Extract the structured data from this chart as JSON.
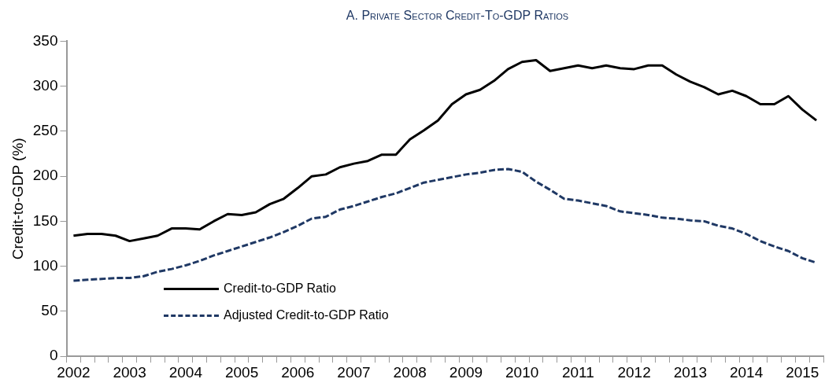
{
  "chart_data": {
    "type": "line",
    "title": "A. Private Sector Credit-To-GDP Ratios",
    "ylabel": "Credit-to-GDP (%)",
    "categories": [
      "2002",
      null,
      null,
      null,
      "2003",
      null,
      null,
      null,
      "2004",
      null,
      null,
      null,
      "2005",
      null,
      null,
      null,
      "2006",
      null,
      null,
      null,
      "2007",
      null,
      null,
      null,
      "2008",
      null,
      null,
      null,
      "2009",
      null,
      null,
      null,
      "2010",
      null,
      null,
      null,
      "2011",
      null,
      null,
      null,
      "2012",
      null,
      null,
      null,
      "2013",
      null,
      null,
      null,
      "2014",
      null,
      null,
      null,
      "2015",
      null
    ],
    "series": [
      {
        "name": "Credit-to-GDP Ratio",
        "color": "#000000",
        "line_style": "solid",
        "values": [
          134,
          136,
          136,
          134,
          128,
          131,
          134,
          142,
          142,
          141,
          150,
          158,
          157,
          160,
          169,
          175,
          187,
          200,
          202,
          210,
          214,
          217,
          224,
          224,
          241,
          251,
          262,
          280,
          291,
          296,
          306,
          319,
          327,
          329,
          317,
          320,
          323,
          320,
          323,
          320,
          319,
          323,
          323,
          313,
          305,
          299,
          291,
          295,
          289,
          280,
          280,
          289,
          274,
          262
        ]
      },
      {
        "name": "Adjusted Credit-to-GDP Ratio",
        "color": "#1f3864",
        "line_style": "dashed",
        "values": [
          84,
          85,
          86,
          87,
          87,
          89,
          94,
          97,
          101,
          106,
          112,
          117,
          122,
          127,
          132,
          138,
          145,
          153,
          155,
          163,
          167,
          172,
          177,
          181,
          187,
          193,
          196,
          199,
          202,
          204,
          207,
          208,
          205,
          194,
          185,
          175,
          173,
          170,
          167,
          161,
          159,
          157,
          154,
          153,
          151,
          150,
          145,
          142,
          136,
          128,
          122,
          117,
          109,
          104
        ]
      }
    ],
    "ylim": [
      0,
      350
    ],
    "yticks": [
      0,
      50,
      100,
      150,
      200,
      250,
      300,
      350
    ],
    "grid": false,
    "legend": "bottom left",
    "marker": "none"
  }
}
